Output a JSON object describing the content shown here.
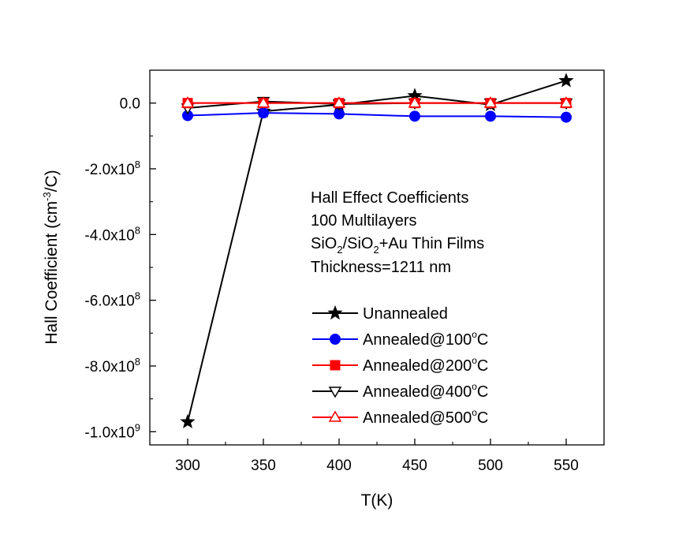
{
  "chart_data": {
    "type": "line",
    "xlabel": "T(K)",
    "ylabel": {
      "main": "Hall Coefficient (cm",
      "sup": "-3",
      "tail": "/C)"
    },
    "xlim": [
      275,
      575
    ],
    "ylim": [
      -1040000000.0,
      100000000.0
    ],
    "x": [
      300,
      350,
      400,
      450,
      500,
      550
    ],
    "x_ticks": [
      {
        "value": 300,
        "label": "300"
      },
      {
        "value": 350,
        "label": "350"
      },
      {
        "value": 400,
        "label": "400"
      },
      {
        "value": 450,
        "label": "450"
      },
      {
        "value": 500,
        "label": "500"
      },
      {
        "value": 550,
        "label": "550"
      }
    ],
    "y_ticks": [
      {
        "value": 0,
        "mant": "0.0",
        "exp": ""
      },
      {
        "value": -200000000.0,
        "mant": "-2.0x10",
        "exp": "8"
      },
      {
        "value": -400000000.0,
        "mant": "-4.0x10",
        "exp": "8"
      },
      {
        "value": -600000000.0,
        "mant": "-6.0x10",
        "exp": "8"
      },
      {
        "value": -800000000.0,
        "mant": "-8.0x10",
        "exp": "8"
      },
      {
        "value": -1000000000.0,
        "mant": "-1.0x10",
        "exp": "9"
      }
    ],
    "series": [
      {
        "name": "Unannealed",
        "color": "#000000",
        "marker": "star",
        "values": [
          -970000000,
          -25000000,
          -5000000,
          22000000,
          -5000000,
          68000000
        ]
      },
      {
        "name": "Annealed@100°C",
        "color": "#0000ff",
        "marker": "circle",
        "values": [
          -38000000,
          -30000000,
          -33000000,
          -40000000,
          -40000000,
          -43000000
        ]
      },
      {
        "name": "Annealed@200°C",
        "color": "#ff0000",
        "marker": "square",
        "values": [
          0,
          0,
          0,
          0,
          0,
          0
        ]
      },
      {
        "name": "Annealed@400°C",
        "color": "#000000",
        "marker": "triangle-down",
        "values": [
          -15000000,
          5000000,
          -3000000,
          0,
          0,
          0
        ]
      },
      {
        "name": "Annealed@500°C",
        "color": "#ff0000",
        "marker": "triangle-up",
        "values": [
          0,
          0,
          0,
          0,
          0,
          0
        ]
      }
    ],
    "legend": {
      "position": "lower-right",
      "entries": [
        {
          "base": "Unannealed",
          "deg": "",
          "tail": ""
        },
        {
          "base": "Annealed@100",
          "deg": "o",
          "tail": "C"
        },
        {
          "base": "Annealed@200",
          "deg": "o",
          "tail": "C"
        },
        {
          "base": "Annealed@400",
          "deg": "o",
          "tail": "C"
        },
        {
          "base": "Annealed@500",
          "deg": "o",
          "tail": "C"
        }
      ]
    },
    "annotation": {
      "line1": "Hall Effect Coefficients",
      "line2": "100 Multilayers",
      "line3": {
        "p1": "SiO",
        "s1": "2",
        "p2": "/SiO",
        "s2": "2",
        "p3": "+Au Thin Films"
      },
      "line4": "Thickness=1211 nm"
    },
    "grid": false
  }
}
